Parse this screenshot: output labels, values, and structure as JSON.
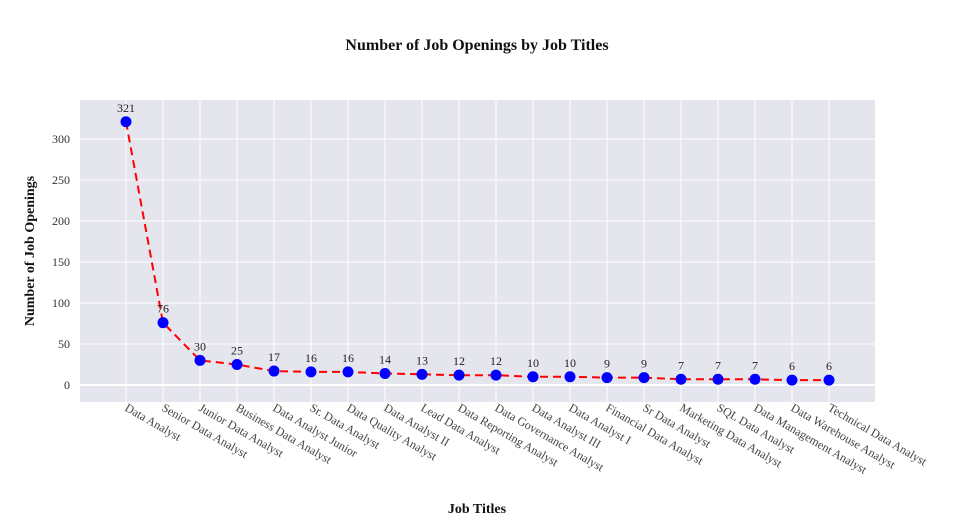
{
  "chart_data": {
    "type": "line",
    "title": "Number of Job Openings by Job Titles",
    "xlabel": "Job Titles",
    "ylabel": "Number of Job Openings",
    "categories": [
      "Data Analyst",
      "Senior Data Analyst",
      "Junior Data Analyst",
      "Business Data Analyst",
      "Data Analyst Junior",
      "Sr. Data Analyst",
      "Data Quality Analyst",
      "Data Analyst II",
      "Lead Data Analyst",
      "Data Reporting Analyst",
      "Data Governance Analyst",
      "Data Analyst III",
      "Data Analyst I",
      "Financial Data Analyst",
      "Sr Data Analyst",
      "Marketing Data Analyst",
      "SQL Data Analyst",
      "Data Management Analyst",
      "Data Warehouse Analyst",
      "Technical Data Analyst"
    ],
    "values": [
      321,
      76,
      30,
      25,
      17,
      16,
      16,
      14,
      13,
      12,
      12,
      10,
      10,
      9,
      9,
      7,
      7,
      7,
      6,
      6
    ],
    "ylim": [
      -20,
      350
    ],
    "yticks": [
      0,
      50,
      100,
      150,
      200,
      250,
      300
    ],
    "grid": true,
    "line_color": "#ff0000",
    "line_style": "dashed",
    "marker_color": "#0000ff",
    "plot_bg": "#e5e5ee"
  }
}
